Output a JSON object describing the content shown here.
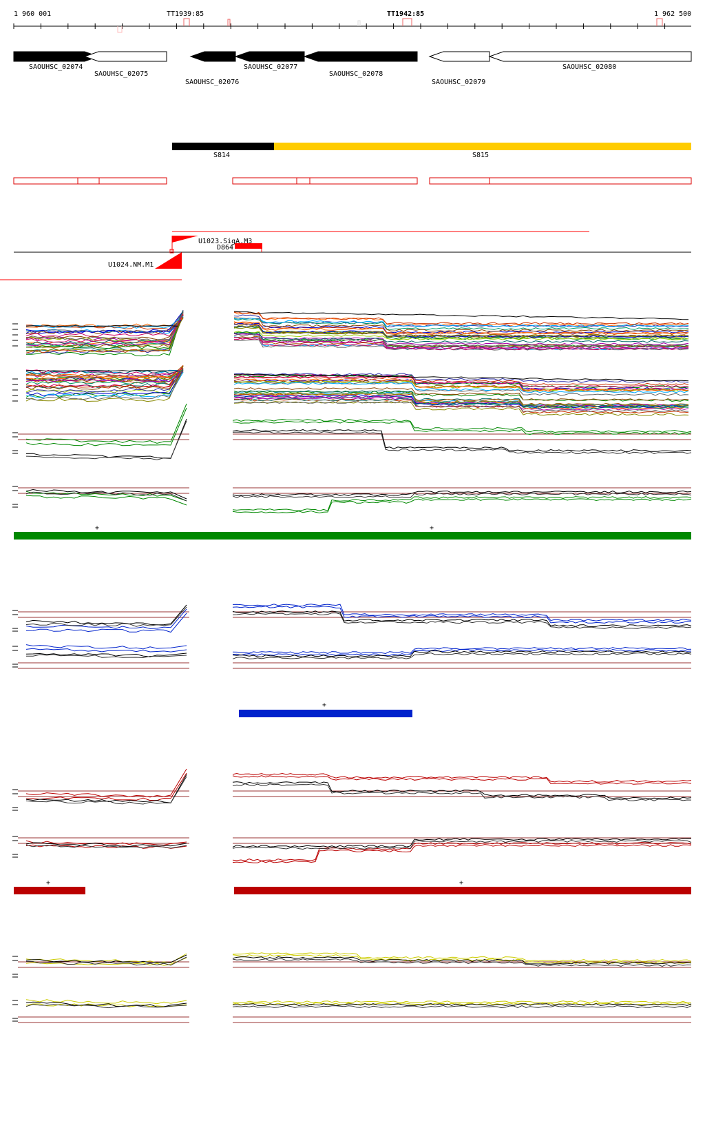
{
  "ruler": {
    "start_label": "1 960 001",
    "end_label": "1 962 500",
    "terminators": [
      "TT1939:85",
      "TT1942:85"
    ]
  },
  "genes": [
    {
      "id": "SAOUHSC_02074",
      "strand": "-",
      "fill": "#000000"
    },
    {
      "id": "SAOUHSC_02075",
      "strand": "+",
      "fill": "#ffffff"
    },
    {
      "id": "SAOUHSC_02076",
      "strand": "-",
      "fill": "#000000"
    },
    {
      "id": "SAOUHSC_02077",
      "strand": "-",
      "fill": "#000000"
    },
    {
      "id": "SAOUHSC_02078",
      "strand": "-",
      "fill": "#000000"
    },
    {
      "id": "SAOUHSC_02079",
      "strand": "+",
      "fill": "#ffffff"
    },
    {
      "id": "SAOUHSC_02080",
      "strand": "+",
      "fill": "#ffffff"
    }
  ],
  "segments": [
    {
      "id": "S814",
      "color": "#000000"
    },
    {
      "id": "S815",
      "color": "#ffcc00"
    }
  ],
  "transcripts": [
    {
      "id": "U1023_SigA_M3",
      "label": "U1023.SigA.M3",
      "color": "#ff0000"
    },
    {
      "id": "D864",
      "label": "D864",
      "color": "#ff0000"
    },
    {
      "id": "U1024_NM_M1",
      "label": "U1024.NM.M1",
      "color": "#ff0000"
    }
  ],
  "condition_groups": [
    {
      "name": "green",
      "color": "#008800",
      "bar_marks": [
        "+",
        "+"
      ]
    },
    {
      "name": "blue",
      "color": "#0022cc",
      "bar_marks": [
        "+"
      ]
    },
    {
      "name": "red",
      "color": "#bb0000",
      "bar_marks": [
        "+",
        "+"
      ]
    },
    {
      "name": "yellow",
      "color": "#cccc00",
      "bar_marks": []
    }
  ],
  "colors": {
    "outline_red": "#dd0000",
    "threshold_line": "#993333",
    "axis": "#000000"
  }
}
